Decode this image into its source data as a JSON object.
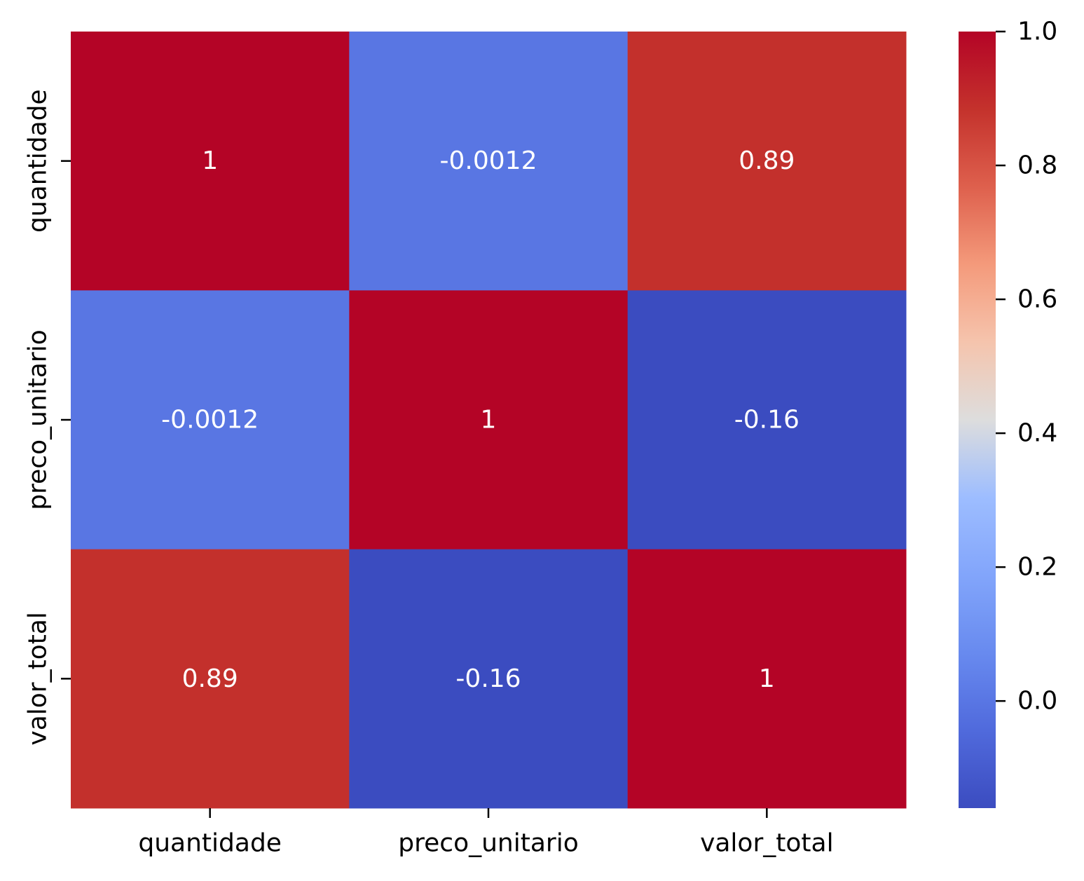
{
  "chart_data": {
    "type": "heatmap",
    "title": "",
    "xlabel": "",
    "ylabel": "",
    "x_categories": [
      "quantidade",
      "preco_unitario",
      "valor_total"
    ],
    "y_categories": [
      "quantidade",
      "preco_unitario",
      "valor_total"
    ],
    "values": [
      [
        1,
        -0.0012,
        0.89
      ],
      [
        -0.0012,
        1,
        -0.16
      ],
      [
        0.89,
        -0.16,
        1
      ]
    ],
    "annotations": [
      [
        "1",
        "-0.0012",
        "0.89"
      ],
      [
        "-0.0012",
        "1",
        "-0.16"
      ],
      [
        "0.89",
        "-0.16",
        "1"
      ]
    ],
    "colormap": "coolwarm",
    "vmin": -0.16,
    "vmax": 1.0,
    "colorbar": {
      "ticks": [
        0.0,
        0.2,
        0.4,
        0.6,
        0.8,
        1.0
      ],
      "tick_labels": [
        "0.0",
        "0.2",
        "0.4",
        "0.6",
        "0.8",
        "1.0"
      ],
      "placement": "right"
    },
    "annotation_color": "#ffffff",
    "grid": false
  }
}
